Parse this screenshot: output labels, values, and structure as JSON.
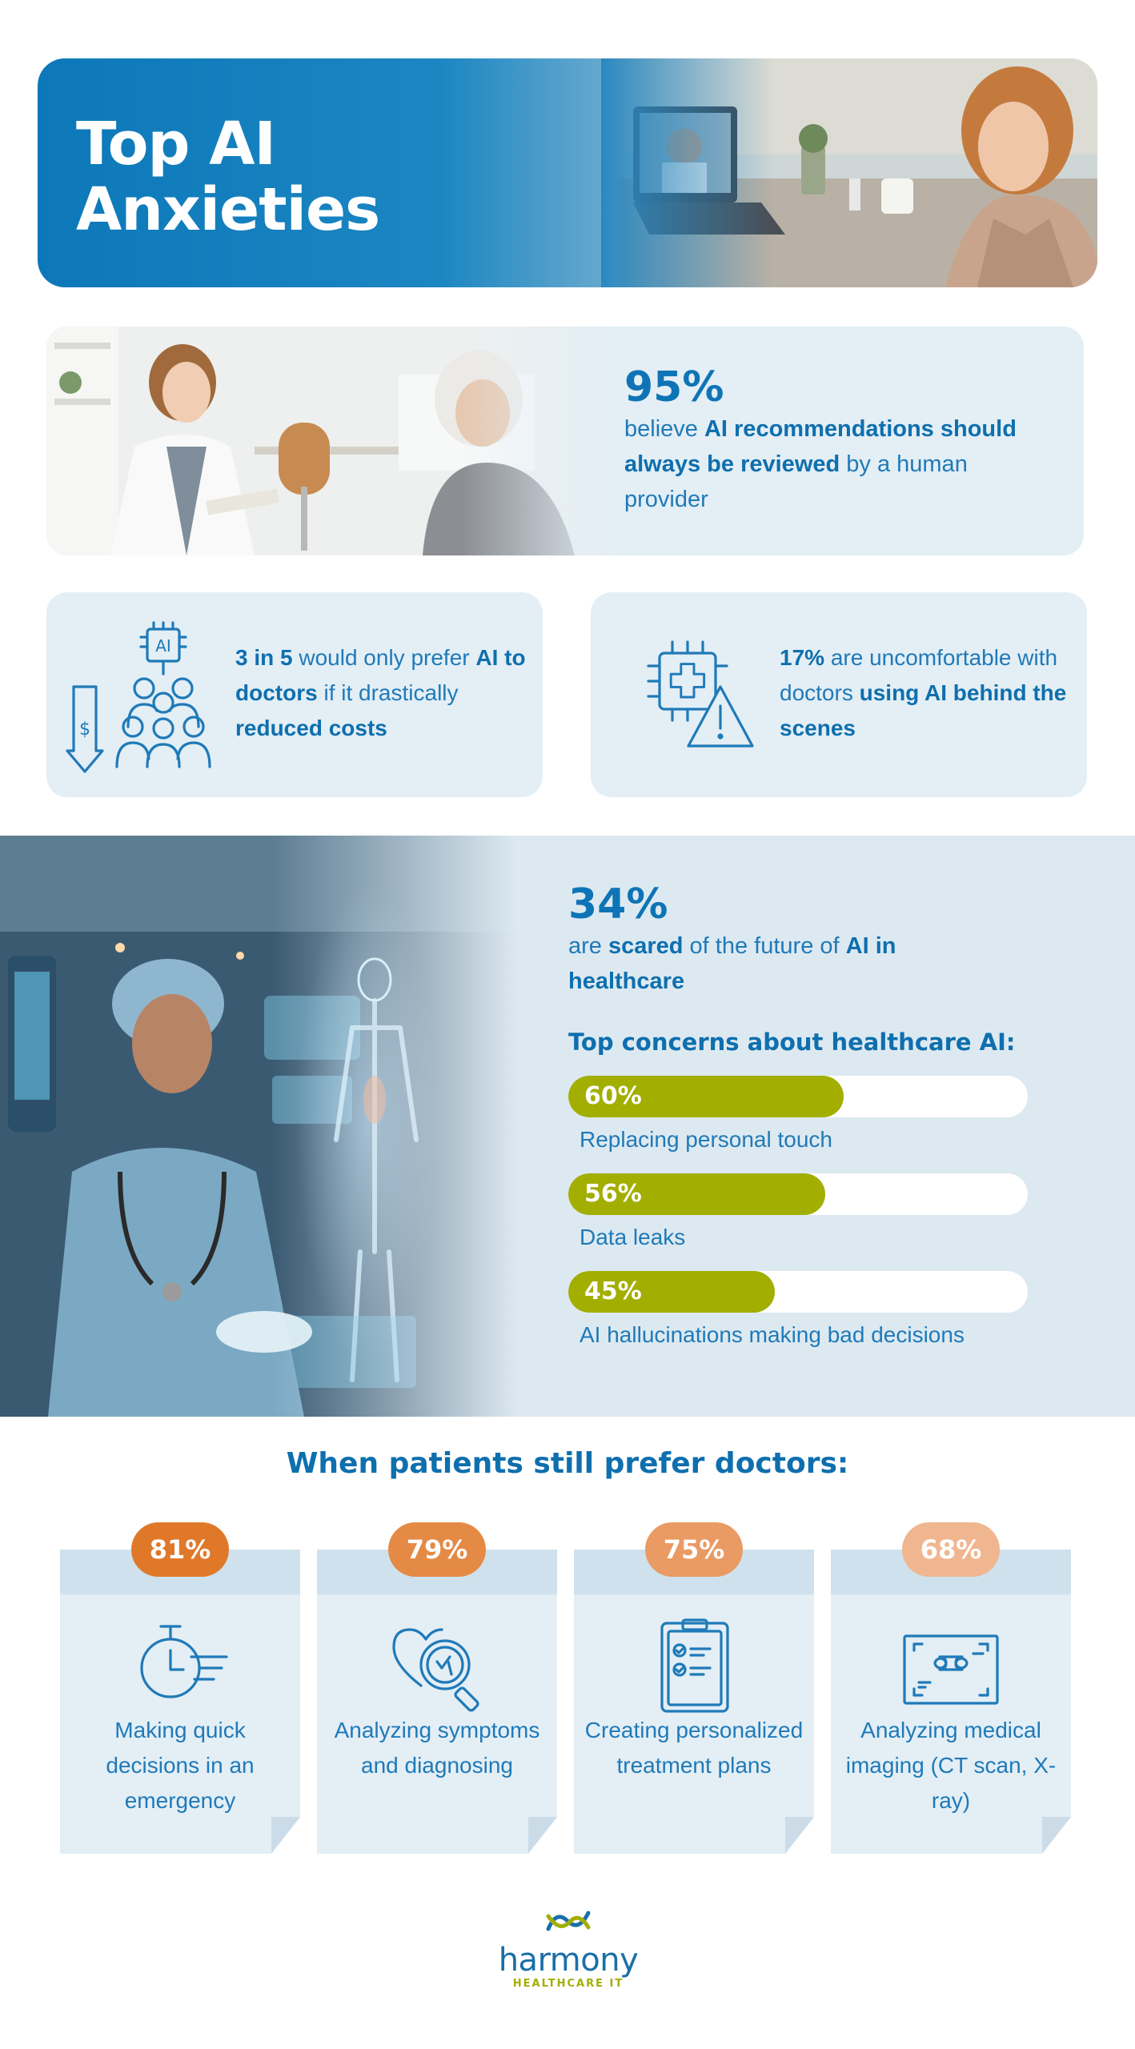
{
  "hero": {
    "title": "Top AI Anxieties"
  },
  "review_stat": {
    "value": "95%",
    "pre": "believe ",
    "bold": "AI recommendations should always be reviewed",
    "post": " by a human provider"
  },
  "cost_stat": {
    "icon": "ai-people-cost-icon",
    "bold1": "3 in 5",
    "t1": " would only prefer ",
    "bold2": "AI to doctors",
    "t2": " if it drastically ",
    "bold3": "reduced costs"
  },
  "behind_stat": {
    "icon": "chip-warning-icon",
    "bold1": "17%",
    "t1": " are uncomfortable with doctors ",
    "bold2": "using AI behind the scenes"
  },
  "future_stat": {
    "value": "34%",
    "t1": "are ",
    "bold1": "scared",
    "t2": " of the future of ",
    "bold2": "AI in healthcare"
  },
  "concerns": {
    "title": "Top concerns about healthcare AI:",
    "bar_color": "#a2ae00",
    "items": [
      {
        "pct": "60%",
        "value": 0.6,
        "label": "Replacing personal touch"
      },
      {
        "pct": "56%",
        "value": 0.56,
        "label": "Data leaks"
      },
      {
        "pct": "45%",
        "value": 0.45,
        "label": "AI hallucinations making bad decisions"
      }
    ]
  },
  "prefer": {
    "title": "When patients still prefer doctors:",
    "items": [
      {
        "pct": "81%",
        "color": "#e0782a",
        "icon": "stopwatch-icon",
        "label": "Making quick decisions in an emergency"
      },
      {
        "pct": "79%",
        "color": "#e58a45",
        "icon": "heart-magnifier-icon",
        "label": "Analyzing symptoms and diagnosing"
      },
      {
        "pct": "75%",
        "color": "#ea9a63",
        "icon": "clipboard-checklist-icon",
        "label": "Creating personalized treatment plans"
      },
      {
        "pct": "68%",
        "color": "#efb690",
        "icon": "bone-scan-icon",
        "label": "Analyzing medical imaging (CT scan, X-ray)"
      }
    ]
  },
  "logo": {
    "word": "harmony",
    "sub": "HEALTHCARE IT"
  }
}
